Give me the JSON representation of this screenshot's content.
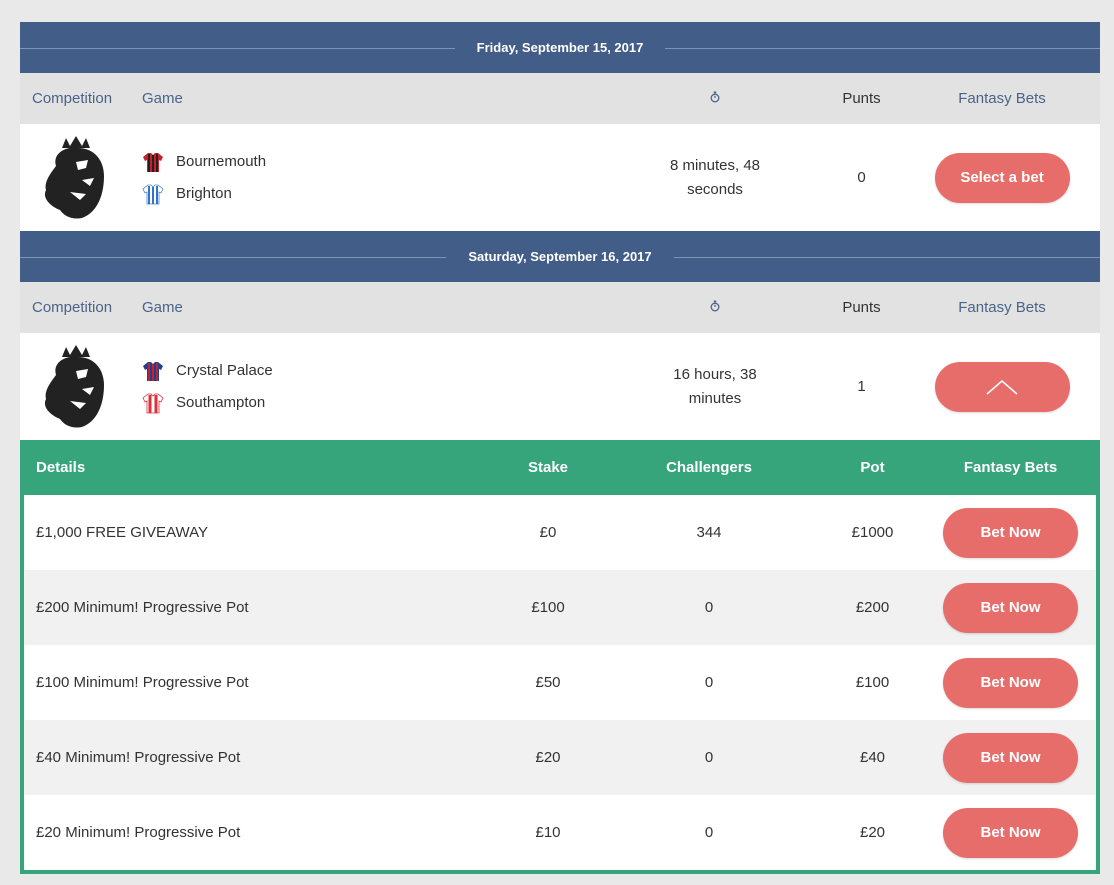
{
  "days": [
    {
      "date": "Friday, September 15, 2017",
      "headers": {
        "competition": "Competition",
        "game": "Game",
        "time_icon": "stopwatch-icon",
        "punts": "Punts",
        "fantasy_bets": "Fantasy Bets"
      },
      "match": {
        "competition_icon": "premier-league-lion-icon",
        "home": "Bournemouth",
        "away": "Brighton",
        "time_left": "8 minutes, 48 seconds",
        "punts": "0",
        "button_label": "Select a bet"
      }
    },
    {
      "date": "Saturday, September 16, 2017",
      "headers": {
        "competition": "Competition",
        "game": "Game",
        "time_icon": "stopwatch-icon",
        "punts": "Punts",
        "fantasy_bets": "Fantasy Bets"
      },
      "match": {
        "competition_icon": "premier-league-lion-icon",
        "home": "Crystal Palace",
        "away": "Southampton",
        "time_left": "16 hours, 38 minutes",
        "punts": "1",
        "button_icon": "chevron-up-icon"
      }
    }
  ],
  "bets_table": {
    "headers": {
      "details": "Details",
      "stake": "Stake",
      "challengers": "Challengers",
      "pot": "Pot",
      "fantasy_bets": "Fantasy Bets"
    },
    "rows": [
      {
        "details": "£1,000 FREE GIVEAWAY",
        "stake": "£0",
        "challengers": "344",
        "pot": "£1000",
        "button": "Bet Now"
      },
      {
        "details": "£200 Minimum! Progressive Pot",
        "stake": "£100",
        "challengers": "0",
        "pot": "£200",
        "button": "Bet Now"
      },
      {
        "details": "£100 Minimum! Progressive Pot",
        "stake": "£50",
        "challengers": "0",
        "pot": "£100",
        "button": "Bet Now"
      },
      {
        "details": "£40 Minimum! Progressive Pot",
        "stake": "£20",
        "challengers": "0",
        "pot": "£40",
        "button": "Bet Now"
      },
      {
        "details": "£20 Minimum! Progressive Pot",
        "stake": "£10",
        "challengers": "0",
        "pot": "£20",
        "button": "Bet Now"
      }
    ]
  },
  "colors": {
    "header_blue": "#425d87",
    "accent_green": "#36a57c",
    "button_red": "#e76d6b"
  }
}
